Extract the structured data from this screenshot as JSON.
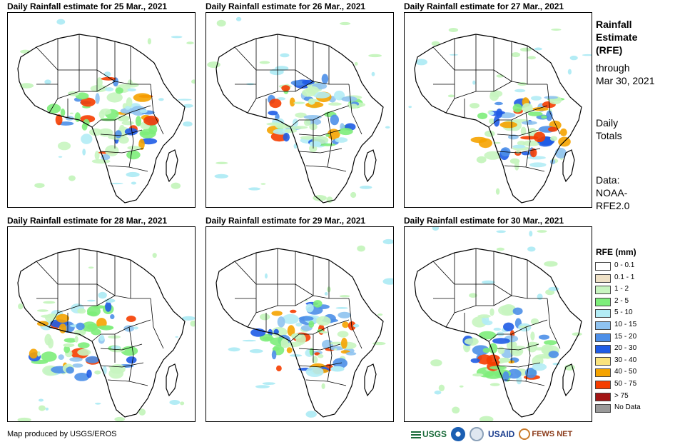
{
  "panels": [
    {
      "title": "Daily Rainfall estimate for 25 Mar., 2021"
    },
    {
      "title": "Daily Rainfall estimate for 26 Mar., 2021"
    },
    {
      "title": "Daily Rainfall estimate for 27 Mar., 2021"
    },
    {
      "title": "Daily Rainfall estimate for 28 Mar., 2021"
    },
    {
      "title": "Daily Rainfall estimate for 29 Mar., 2021"
    },
    {
      "title": "Daily Rainfall estimate for 30 Mar., 2021"
    }
  ],
  "side": {
    "title_line1": "Rainfall",
    "title_line2": "Estimate",
    "title_line3": "(RFE)",
    "through_line1": "through",
    "through_line2": "Mar 30, 2021",
    "daily_line1": "Daily",
    "daily_line2": "Totals",
    "data_line1": "Data:",
    "data_line2": "NOAA-",
    "data_line3": "RFE2.0"
  },
  "legend": {
    "title": "RFE (mm)",
    "items": [
      {
        "label": "0 - 0.1",
        "color": "#ffffff"
      },
      {
        "label": "0.1 - 1",
        "color": "#efe1c6"
      },
      {
        "label": "1 - 2",
        "color": "#c8f5c0"
      },
      {
        "label": "2 - 5",
        "color": "#7ded7a"
      },
      {
        "label": "5 - 10",
        "color": "#b3ecf5"
      },
      {
        "label": "10 - 15",
        "color": "#8fc3f0"
      },
      {
        "label": "15 - 20",
        "color": "#4d8fe8"
      },
      {
        "label": "20 - 30",
        "color": "#1f5ce6"
      },
      {
        "label": "30 - 40",
        "color": "#fae37d"
      },
      {
        "label": "40 - 50",
        "color": "#f5a300"
      },
      {
        "label": "50 - 75",
        "color": "#f53d00"
      },
      {
        "label": "> 75",
        "color": "#a31515"
      },
      {
        "label": "No Data",
        "color": "#999999"
      }
    ]
  },
  "footer": {
    "credit": "Map produced by USGS/EROS"
  },
  "logos": {
    "usgs": "USGS",
    "usaid": "USAID",
    "fewsnet": "FEWS NET"
  }
}
